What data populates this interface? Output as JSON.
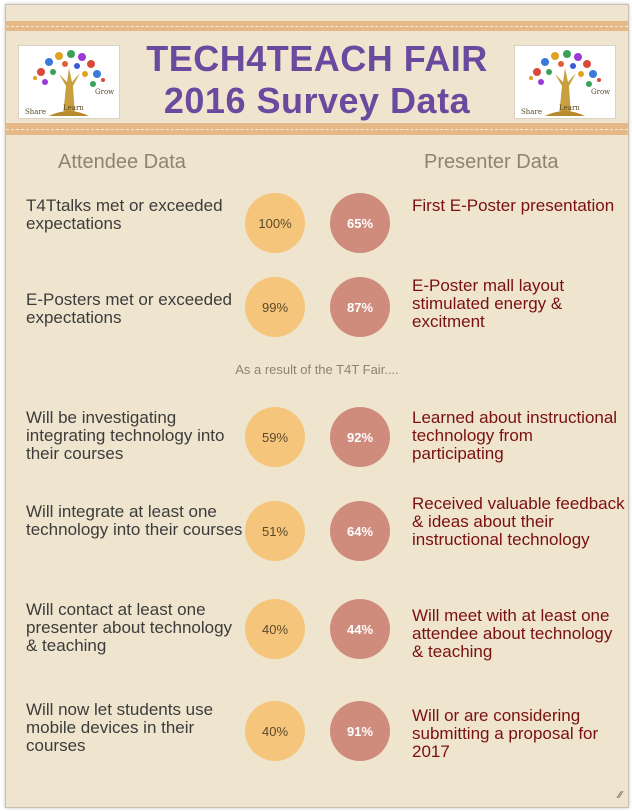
{
  "header": {
    "title_line1": "TECH4TEACH FAIR",
    "title_line2": "2016 Survey Data"
  },
  "logo": {
    "words": [
      "Grow",
      "Learn",
      "Share"
    ]
  },
  "columns": {
    "attendee": "Attendee Data",
    "presenter": "Presenter Data"
  },
  "subheading": "As a result of the T4T Fair....",
  "rows": [
    {
      "attendee_text": "T4Ttalks met or exceeded expectations",
      "attendee_pct": "100%",
      "presenter_pct": "65%",
      "presenter_text": "First E-Poster presentation"
    },
    {
      "attendee_text": "E-Posters met or exceeded expectations",
      "attendee_pct": "99%",
      "presenter_pct": "87%",
      "presenter_text": "E-Poster mall layout stimulated energy & excitment"
    },
    {
      "attendee_text": "Will be investigating integrating technology into their courses",
      "attendee_pct": "59%",
      "presenter_pct": "92%",
      "presenter_text": "Learned about instructional technology from participating"
    },
    {
      "attendee_text": "Will integrate at least one technology into their courses",
      "attendee_pct": "51%",
      "presenter_pct": "64%",
      "presenter_text": "Received valuable feedback & ideas about their instructional technology"
    },
    {
      "attendee_text": "Will contact at least one presenter about technology & teaching",
      "attendee_pct": "40%",
      "presenter_pct": "44%",
      "presenter_text": "Will meet with at least one attendee about technology & teaching"
    },
    {
      "attendee_text": "Will now let students use mobile devices in their courses",
      "attendee_pct": "40%",
      "presenter_pct": "91%",
      "presenter_text": "Will or are considering submitting a proposal for 2017"
    }
  ],
  "colors": {
    "title": "#6a4a9e",
    "band": "#e4b987",
    "background": "#efe4cd",
    "attendee_circle": "#f6c57c",
    "presenter_circle": "#cf8c7d",
    "presenter_text": "#7a1010"
  },
  "icons": {
    "logo": "tree-logo-icon",
    "resize": "resize-grip-icon"
  }
}
